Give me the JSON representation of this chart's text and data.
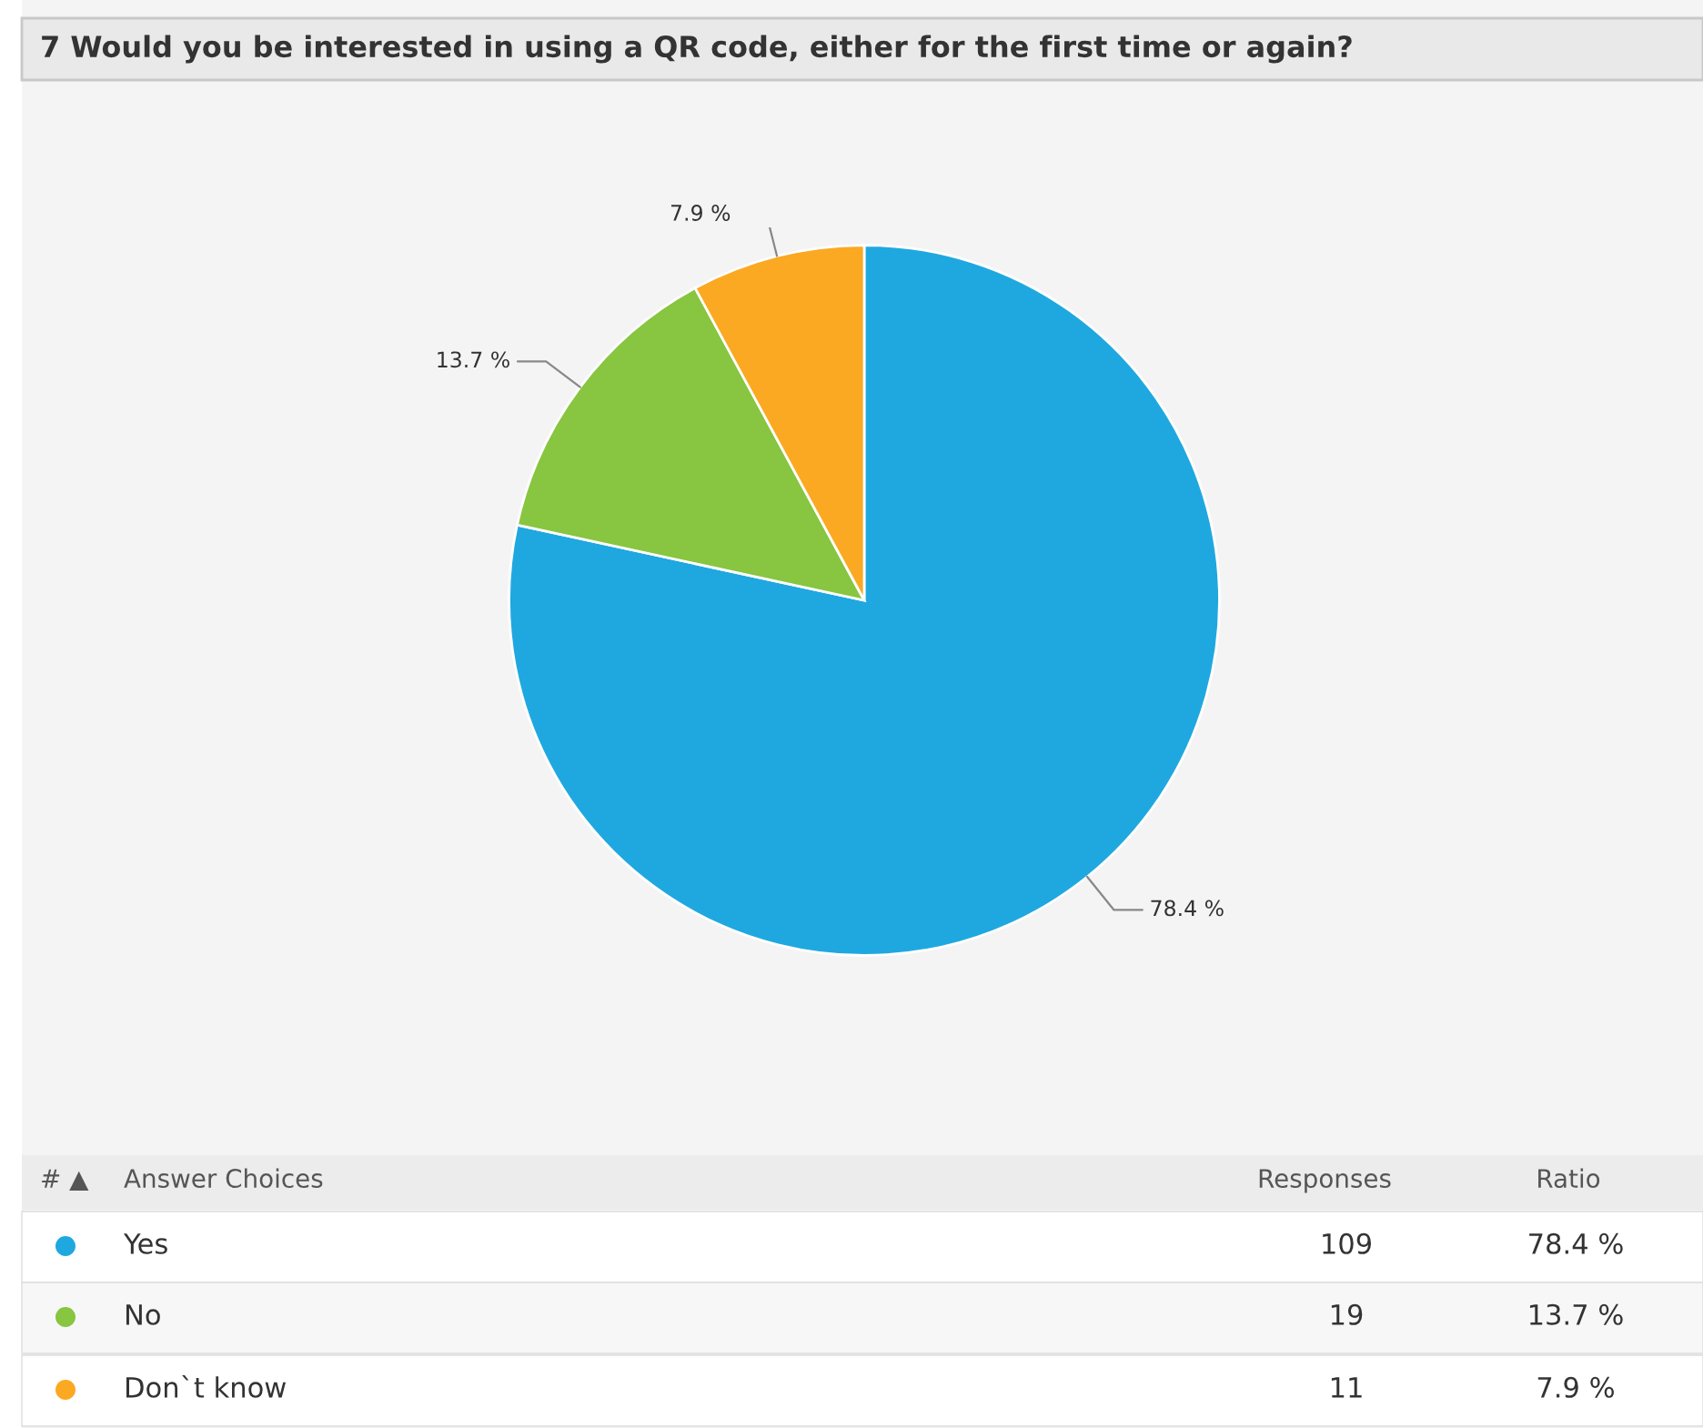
{
  "chart_data": {
    "type": "pie",
    "title": "7 Would you be interested in using a QR code, either for the first time or again?",
    "categories": [
      "Yes",
      "No",
      "Don`t know"
    ],
    "values": [
      78.4,
      13.7,
      7.9
    ],
    "colors": [
      "#1fa8e0",
      "#88c540",
      "#fba922"
    ],
    "value_labels": [
      "78.4 %",
      "13.7 %",
      "7.9 %"
    ],
    "annotations": [
      "# ▲",
      "Answer Choices",
      "Responses",
      "Ratio",
      "109",
      "19",
      "11"
    ],
    "legend": "bottom"
  }
}
